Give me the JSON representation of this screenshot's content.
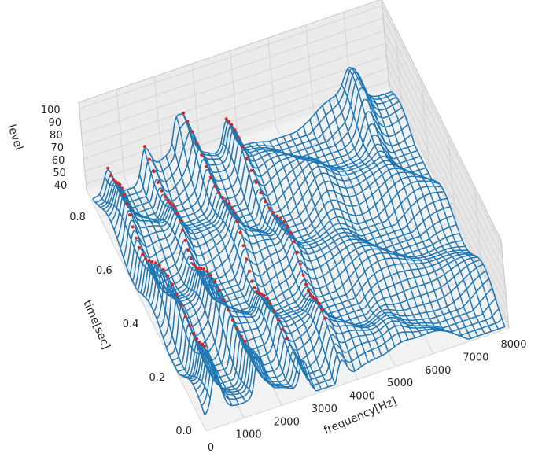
{
  "chart_data": {
    "type": "surface3d",
    "xlabel": "frequency[Hz]",
    "ylabel": "time[sec]",
    "zlabel": "level",
    "x_ticks": [
      "0",
      "1000",
      "2000",
      "3000",
      "4000",
      "5000",
      "6000",
      "7000",
      "8000"
    ],
    "y_ticks": [
      "0.0",
      "0.2",
      "0.4",
      "0.6",
      "0.8"
    ],
    "z_ticks": [
      "40",
      "50",
      "60",
      "70",
      "80",
      "90",
      "100"
    ],
    "xlim": [
      0,
      8000
    ],
    "ylim": [
      0,
      0.9
    ],
    "zlim": [
      35,
      105
    ],
    "grid": true,
    "wireframe_color": "#1f77b4",
    "marker_color": "#d62728",
    "peak_tracks_freq_hz": [
      350,
      1400,
      2600,
      3700
    ],
    "secondary_ridge_freq_hz": 6900
  }
}
